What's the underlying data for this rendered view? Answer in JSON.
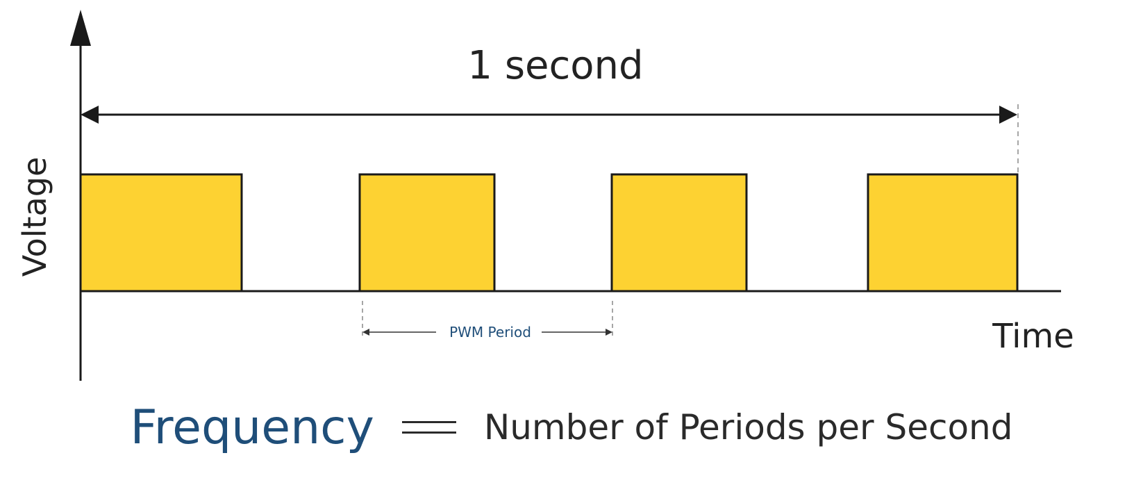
{
  "labels": {
    "duration": "1 second",
    "y_axis": "Voltage",
    "x_axis": "Time",
    "period": "PWM Period"
  },
  "formula": {
    "lhs": "Frequency",
    "rhs": "Number of Periods per Second"
  },
  "colors": {
    "pulse_fill": "#fdd232",
    "outline": "#1a1a1a",
    "accent_blue": "#1f4e79",
    "text": "#222222"
  }
}
